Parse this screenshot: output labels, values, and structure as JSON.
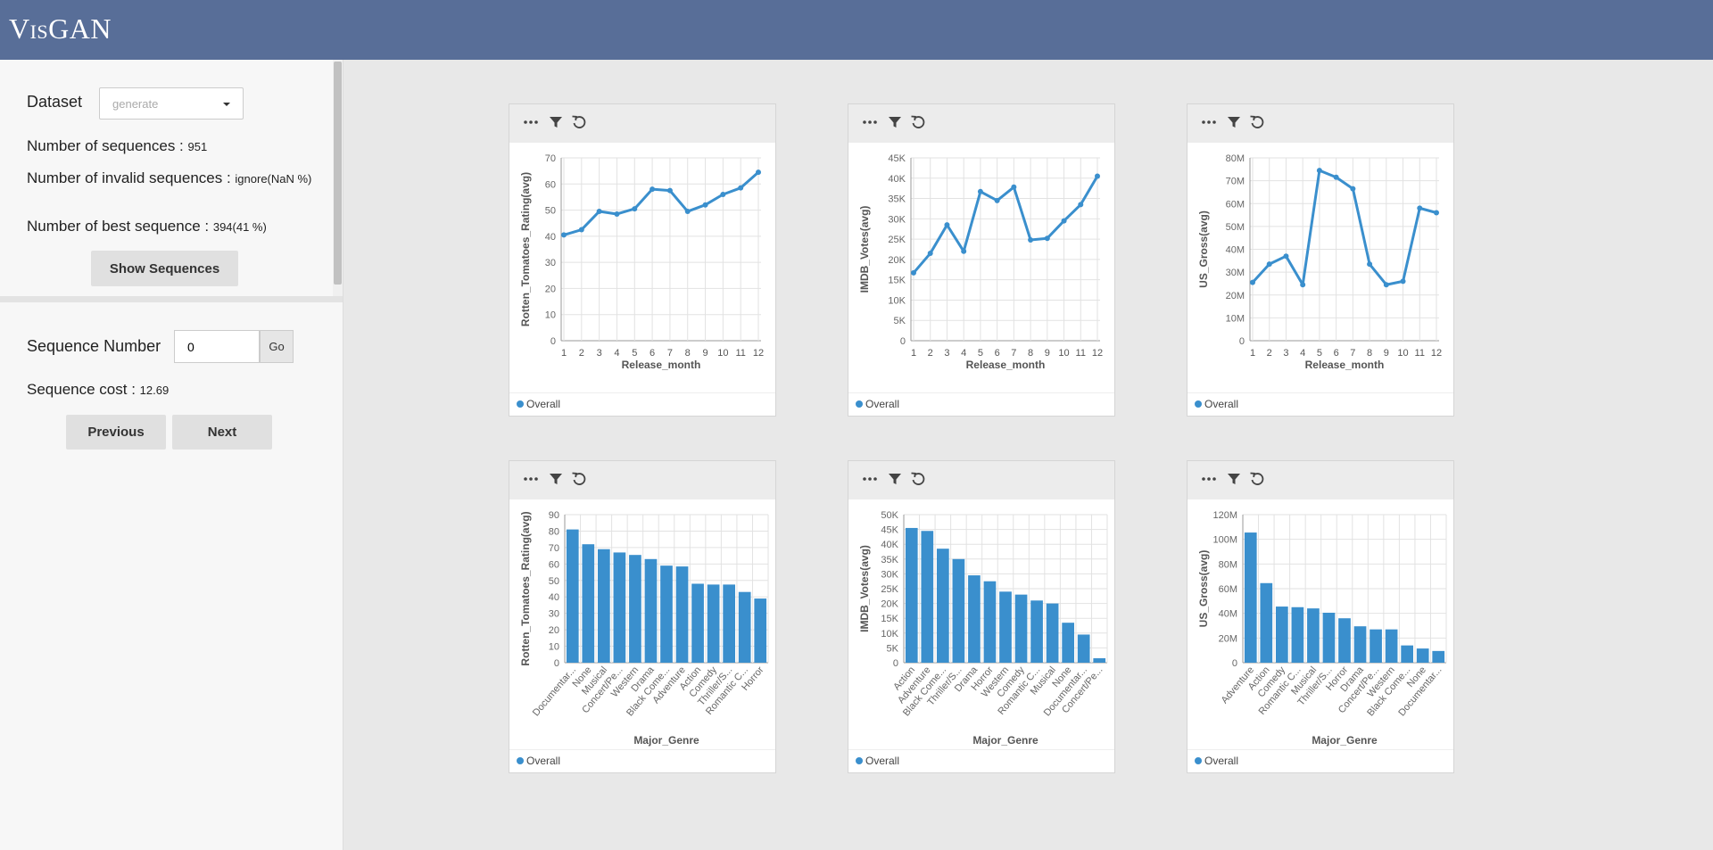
{
  "app": {
    "title": "VisGAN"
  },
  "sidebar": {
    "dataset_label": "Dataset",
    "dataset_placeholder": "generate",
    "num_sequences_label": "Number of sequences : ",
    "num_sequences_value": "951",
    "num_invalid_label": "Number of invalid sequences : ",
    "num_invalid_value": "ignore(NaN %)",
    "num_best_label": "Number of best sequence : ",
    "num_best_value": "394(41 %)",
    "show_sequences_button": "Show Sequences",
    "sequence_number_label": "Sequence Number",
    "sequence_number_value": "0",
    "go_button": "Go",
    "sequence_cost_label": "Sequence cost : ",
    "sequence_cost_value": "12.69",
    "previous_button": "Previous",
    "next_button": "Next"
  },
  "colors": {
    "series": "#3a8fcd",
    "header": "#586e98"
  },
  "chart_data": [
    {
      "type": "line",
      "title": "",
      "xlabel": "Release_month",
      "ylabel": "Rotten_Tomatoes_Rating(avg)",
      "categories": [
        "1",
        "2",
        "3",
        "4",
        "5",
        "6",
        "7",
        "8",
        "9",
        "10",
        "11",
        "12"
      ],
      "values": [
        40.5,
        42.5,
        49.5,
        48.5,
        50.5,
        58,
        57.5,
        49.5,
        52,
        56,
        58.5,
        64.5
      ],
      "ylim": [
        0,
        70
      ],
      "yticks": [
        "0",
        "10",
        "20",
        "30",
        "40",
        "50",
        "60",
        "70"
      ],
      "legend": "Overall"
    },
    {
      "type": "line",
      "title": "",
      "xlabel": "Release_month",
      "ylabel": "IMDB_Votes(avg)",
      "categories": [
        "1",
        "2",
        "3",
        "4",
        "5",
        "6",
        "7",
        "8",
        "9",
        "10",
        "11",
        "12"
      ],
      "values": [
        16700,
        21500,
        28500,
        22000,
        36700,
        34500,
        37800,
        24800,
        25200,
        29500,
        33500,
        40500
      ],
      "ylim": [
        0,
        45000
      ],
      "yticks": [
        "0",
        "5K",
        "10K",
        "15K",
        "20K",
        "25K",
        "30K",
        "35K",
        "40K",
        "45K"
      ],
      "legend": "Overall"
    },
    {
      "type": "line",
      "title": "",
      "xlabel": "Release_month",
      "ylabel": "US_Gross(avg)",
      "categories": [
        "1",
        "2",
        "3",
        "4",
        "5",
        "6",
        "7",
        "8",
        "9",
        "10",
        "11",
        "12"
      ],
      "values": [
        25500000,
        33500000,
        37000000,
        24500000,
        74500000,
        71500000,
        66500000,
        33500000,
        24500000,
        26000000,
        58000000,
        56000000
      ],
      "ylim": [
        0,
        80000000
      ],
      "yticks": [
        "0",
        "10M",
        "20M",
        "30M",
        "40M",
        "50M",
        "60M",
        "70M",
        "80M"
      ],
      "legend": "Overall"
    },
    {
      "type": "bar",
      "title": "",
      "xlabel": "Major_Genre",
      "ylabel": "Rotten_Tomatoes_Rating(avg)",
      "categories": [
        "Documentar...",
        "None",
        "Musical",
        "Concert/Pe...",
        "Western",
        "Drama",
        "Black Come...",
        "Adventure",
        "Action",
        "Comedy",
        "Thriller/S...",
        "Romantic C...",
        "Horror"
      ],
      "values": [
        81,
        72,
        69,
        67,
        65.5,
        63,
        59,
        58.5,
        48,
        47.5,
        47.5,
        43,
        39
      ],
      "ylim": [
        0,
        90
      ],
      "yticks": [
        "0",
        "10",
        "20",
        "30",
        "40",
        "50",
        "60",
        "70",
        "80",
        "90"
      ],
      "legend": "Overall"
    },
    {
      "type": "bar",
      "title": "",
      "xlabel": "Major_Genre",
      "ylabel": "IMDB_Votes(avg)",
      "categories": [
        "Action",
        "Adventure",
        "Black Come...",
        "Thriller/S...",
        "Drama",
        "Horror",
        "Western",
        "Comedy",
        "Romantic C...",
        "Musical",
        "None",
        "Documentar...",
        "Concert/Pe..."
      ],
      "values": [
        45500,
        44500,
        38500,
        35000,
        29500,
        27500,
        24000,
        23000,
        21000,
        20000,
        13500,
        9500,
        1500
      ],
      "ylim": [
        0,
        50000
      ],
      "yticks": [
        "0",
        "5K",
        "10K",
        "15K",
        "20K",
        "25K",
        "30K",
        "35K",
        "40K",
        "45K",
        "50K"
      ],
      "legend": "Overall"
    },
    {
      "type": "bar",
      "title": "",
      "xlabel": "Major_Genre",
      "ylabel": "US_Gross(avg)",
      "categories": [
        "Adventure",
        "Action",
        "Comedy",
        "Romantic C...",
        "Musical",
        "Thriller/S...",
        "Horror",
        "Drama",
        "Concert/Pe...",
        "Western",
        "Black Come...",
        "None",
        "Documentar..."
      ],
      "values": [
        105500000,
        64500000,
        45500000,
        45000000,
        44000000,
        40500000,
        36000000,
        29500000,
        27000000,
        27000000,
        14000000,
        11500000,
        9500000
      ],
      "ylim": [
        0,
        120000000
      ],
      "yticks": [
        "0",
        "20M",
        "40M",
        "60M",
        "80M",
        "100M",
        "120M"
      ],
      "legend": "Overall"
    }
  ]
}
